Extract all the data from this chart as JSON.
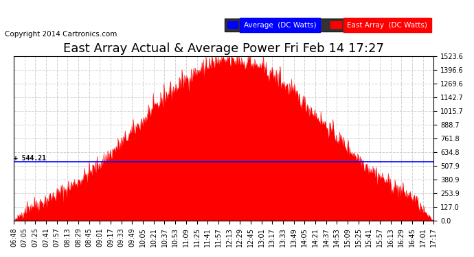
{
  "title": "East Array Actual & Average Power Fri Feb 14 17:27",
  "copyright": "Copyright 2014 Cartronics.com",
  "avg_value": 544.21,
  "y_max": 1523.6,
  "y_min": 0.0,
  "y_ticks": [
    0.0,
    127.0,
    253.9,
    380.9,
    507.9,
    634.8,
    761.8,
    888.7,
    1015.7,
    1142.7,
    1269.6,
    1396.6,
    1523.6
  ],
  "bg_color": "#ffffff",
  "grid_color": "#cccccc",
  "fill_color": "#ff0000",
  "line_color": "#0000ff",
  "avg_line_color": "#0000ff",
  "legend_avg_bg": "#0000ff",
  "legend_east_bg": "#ff0000",
  "legend_avg_text": "Average  (DC Watts)",
  "legend_east_text": "East Array  (DC Watts)",
  "title_fontsize": 13,
  "copyright_fontsize": 7.5,
  "tick_fontsize": 7,
  "x_labels": [
    "06:48",
    "07:05",
    "07:25",
    "07:41",
    "07:57",
    "08:13",
    "08:29",
    "08:45",
    "09:01",
    "09:17",
    "09:33",
    "09:49",
    "10:05",
    "10:21",
    "10:37",
    "10:53",
    "11:09",
    "11:25",
    "11:41",
    "11:57",
    "12:13",
    "12:29",
    "12:45",
    "13:01",
    "13:17",
    "13:33",
    "13:49",
    "14:05",
    "14:21",
    "14:37",
    "14:53",
    "15:09",
    "15:25",
    "15:41",
    "15:57",
    "16:13",
    "16:29",
    "16:45",
    "17:01",
    "17:17"
  ]
}
